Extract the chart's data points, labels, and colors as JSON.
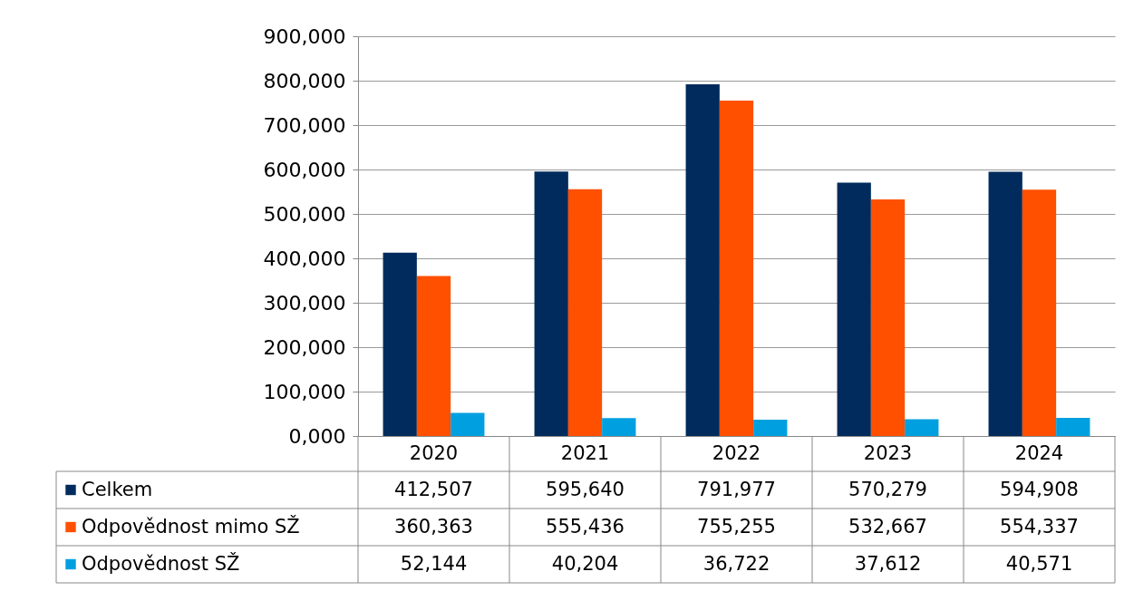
{
  "chart_data": {
    "type": "bar",
    "categories": [
      "2020",
      "2021",
      "2022",
      "2023",
      "2024"
    ],
    "series": [
      {
        "name": "Celkem",
        "color": "#002b5c",
        "values": [
          412507,
          595640,
          791977,
          570279,
          594908
        ],
        "value_labels": [
          "412,507",
          "595,640",
          "791,977",
          "570,279",
          "594,908"
        ]
      },
      {
        "name": "Odpovědnost mimo SŽ",
        "color": "#ff5000",
        "values": [
          360363,
          555436,
          755255,
          532667,
          554337
        ],
        "value_labels": [
          "360,363",
          "555,436",
          "755,255",
          "532,667",
          "554,337"
        ]
      },
      {
        "name": "Odpovědnost SŽ",
        "color": "#00a0e0",
        "values": [
          52144,
          40204,
          36722,
          37612,
          40571
        ],
        "value_labels": [
          "52,144",
          "40,204",
          "36,722",
          "37,612",
          "40,571"
        ]
      }
    ],
    "ylim": [
      0,
      900000
    ],
    "yticks": [
      {
        "value": 0,
        "label": "0,000"
      },
      {
        "value": 100000,
        "label": "100,000"
      },
      {
        "value": 200000,
        "label": "200,000"
      },
      {
        "value": 300000,
        "label": "300,000"
      },
      {
        "value": 400000,
        "label": "400,000"
      },
      {
        "value": 500000,
        "label": "500,000"
      },
      {
        "value": 600000,
        "label": "600,000"
      },
      {
        "value": 700000,
        "label": "700,000"
      },
      {
        "value": 800000,
        "label": "800,000"
      },
      {
        "value": 900000,
        "label": "900,000"
      }
    ],
    "grid": "y",
    "legend": "bottom"
  }
}
